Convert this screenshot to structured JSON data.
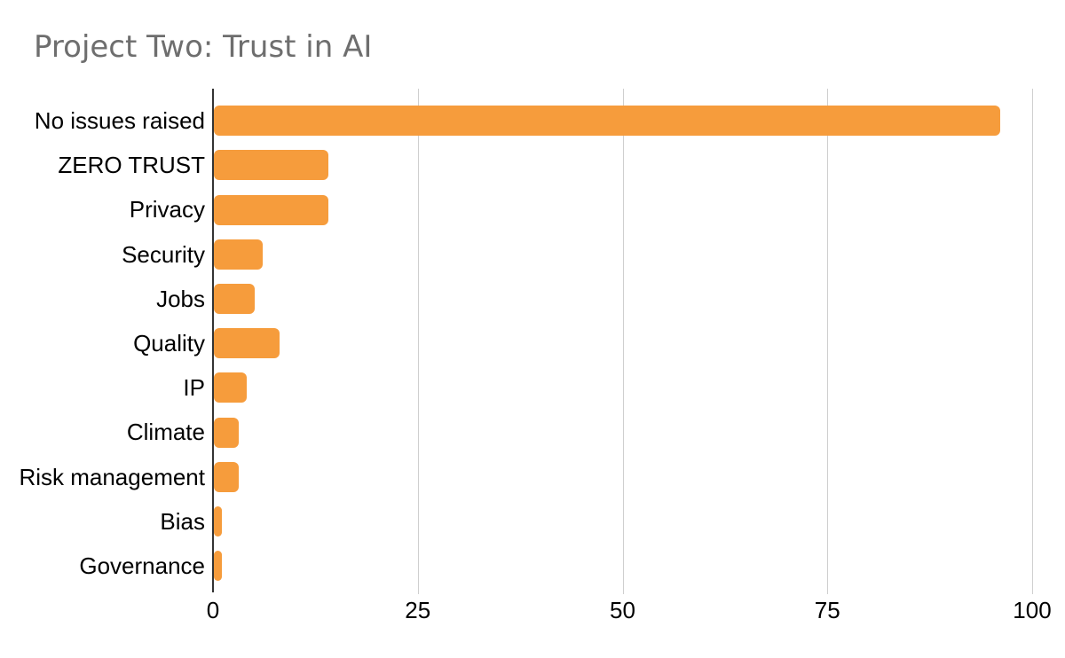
{
  "title": "Project Two: Trust in AI",
  "chart_data": {
    "type": "bar",
    "orientation": "horizontal",
    "title": "Project Two: Trust in AI",
    "categories": [
      "No issues raised",
      "ZERO TRUST",
      "Privacy",
      "Security",
      "Jobs",
      "Quality",
      "IP",
      "Climate",
      "Risk management",
      "Bias",
      "Governance"
    ],
    "values": [
      96,
      14,
      14,
      6,
      5,
      8,
      4,
      3,
      3,
      1,
      1
    ],
    "xlabel": "",
    "ylabel": "",
    "xlim": [
      0,
      100
    ],
    "x_ticks": [
      0,
      25,
      50,
      75,
      100
    ],
    "grid": "vertical-gridlines-on",
    "legend": "none",
    "colors": {
      "bar": "#F69C3C",
      "gridline": "#CFCFCF",
      "zero_axis": "#333333",
      "title": "#6E6E6E",
      "labels": "#000000",
      "background": "#FFFFFF"
    }
  }
}
